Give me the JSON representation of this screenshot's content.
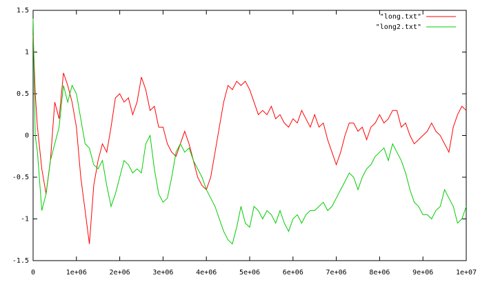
{
  "chart_data": {
    "type": "line",
    "x": [
      0,
      50000,
      100000,
      200000,
      300000,
      400000,
      500000,
      600000,
      700000,
      800000,
      900000,
      1000000,
      1100000,
      1200000,
      1300000,
      1400000,
      1500000,
      1600000,
      1700000,
      1800000,
      1900000,
      2000000,
      2100000,
      2200000,
      2300000,
      2400000,
      2500000,
      2600000,
      2700000,
      2800000,
      2900000,
      3000000,
      3100000,
      3200000,
      3300000,
      3400000,
      3500000,
      3600000,
      3700000,
      3800000,
      3900000,
      4000000,
      4100000,
      4200000,
      4300000,
      4400000,
      4500000,
      4600000,
      4700000,
      4800000,
      4900000,
      5000000,
      5100000,
      5200000,
      5300000,
      5400000,
      5500000,
      5600000,
      5700000,
      5800000,
      5900000,
      6000000,
      6100000,
      6200000,
      6300000,
      6400000,
      6500000,
      6600000,
      6700000,
      6800000,
      6900000,
      7000000,
      7100000,
      7200000,
      7300000,
      7400000,
      7500000,
      7600000,
      7700000,
      7800000,
      7900000,
      8000000,
      8100000,
      8200000,
      8300000,
      8400000,
      8500000,
      8600000,
      8700000,
      8800000,
      8900000,
      9000000,
      9100000,
      9200000,
      9300000,
      9400000,
      9500000,
      9600000,
      9700000,
      9800000,
      9900000,
      10000000
    ],
    "series": [
      {
        "name": "\"long.txt\"",
        "color": "#ff0000",
        "values": [
          1.2,
          0.5,
          0.1,
          -0.4,
          -0.7,
          -0.3,
          0.4,
          0.2,
          0.75,
          0.6,
          0.4,
          0.1,
          -0.5,
          -0.9,
          -1.3,
          -0.6,
          -0.3,
          -0.1,
          -0.2,
          0.1,
          0.45,
          0.5,
          0.4,
          0.45,
          0.25,
          0.4,
          0.7,
          0.55,
          0.3,
          0.35,
          0.1,
          0.1,
          -0.1,
          -0.2,
          -0.25,
          -0.1,
          0.05,
          -0.1,
          -0.3,
          -0.5,
          -0.6,
          -0.65,
          -0.5,
          -0.2,
          0.1,
          0.4,
          0.6,
          0.55,
          0.65,
          0.6,
          0.65,
          0.55,
          0.4,
          0.25,
          0.3,
          0.25,
          0.35,
          0.2,
          0.25,
          0.15,
          0.1,
          0.2,
          0.15,
          0.3,
          0.2,
          0.1,
          0.25,
          0.1,
          0.15,
          -0.05,
          -0.2,
          -0.35,
          -0.2,
          0.0,
          0.15,
          0.15,
          0.05,
          0.1,
          -0.05,
          0.1,
          0.15,
          0.25,
          0.15,
          0.2,
          0.3,
          0.3,
          0.1,
          0.15,
          0.0,
          -0.1,
          -0.05,
          0.0,
          0.05,
          0.15,
          0.05,
          0.0,
          -0.1,
          -0.2,
          0.1,
          0.25,
          0.35,
          0.3
        ]
      },
      {
        "name": "\"long2.txt\"",
        "color": "#00cc00",
        "values": [
          1.4,
          0.0,
          -0.2,
          -0.9,
          -0.7,
          -0.3,
          -0.1,
          0.1,
          0.6,
          0.4,
          0.6,
          0.5,
          0.2,
          -0.1,
          -0.15,
          -0.35,
          -0.4,
          -0.3,
          -0.6,
          -0.85,
          -0.7,
          -0.5,
          -0.3,
          -0.35,
          -0.45,
          -0.4,
          -0.45,
          -0.1,
          0.0,
          -0.4,
          -0.7,
          -0.8,
          -0.75,
          -0.5,
          -0.2,
          -0.1,
          -0.2,
          -0.15,
          -0.3,
          -0.4,
          -0.5,
          -0.65,
          -0.75,
          -0.85,
          -1.0,
          -1.15,
          -1.25,
          -1.3,
          -1.1,
          -0.85,
          -1.05,
          -1.1,
          -0.85,
          -0.9,
          -1.0,
          -0.9,
          -0.95,
          -1.05,
          -0.9,
          -1.05,
          -1.15,
          -1.0,
          -0.95,
          -1.05,
          -0.95,
          -0.9,
          -0.9,
          -0.85,
          -0.8,
          -0.9,
          -0.85,
          -0.75,
          -0.65,
          -0.55,
          -0.45,
          -0.5,
          -0.65,
          -0.5,
          -0.4,
          -0.35,
          -0.25,
          -0.2,
          -0.15,
          -0.3,
          -0.1,
          -0.2,
          -0.3,
          -0.45,
          -0.65,
          -0.8,
          -0.85,
          -0.95,
          -0.95,
          -1.0,
          -0.9,
          -0.85,
          -0.65,
          -0.75,
          -0.85,
          -1.05,
          -1.0,
          -0.85
        ]
      }
    ],
    "xlim": [
      0,
      10000000
    ],
    "xticks": [
      0,
      {
        "value": 1000000,
        "label": "1e+06"
      },
      {
        "value": 2000000,
        "label": "2e+06"
      },
      {
        "value": 3000000,
        "label": "3e+06"
      },
      {
        "value": 4000000,
        "label": "4e+06"
      },
      {
        "value": 5000000,
        "label": "5e+06"
      },
      {
        "value": 6000000,
        "label": "6e+06"
      },
      {
        "value": 7000000,
        "label": "7e+06"
      },
      {
        "value": 8000000,
        "label": "8e+06"
      },
      {
        "value": 9000000,
        "label": "9e+06"
      },
      {
        "value": 10000000,
        "label": "1e+07"
      }
    ],
    "ylim": [
      -1.5,
      1.5
    ],
    "yticks": [
      -1.5,
      -1,
      -0.5,
      0,
      0.5,
      1,
      1.5
    ],
    "legend": "top-right"
  }
}
